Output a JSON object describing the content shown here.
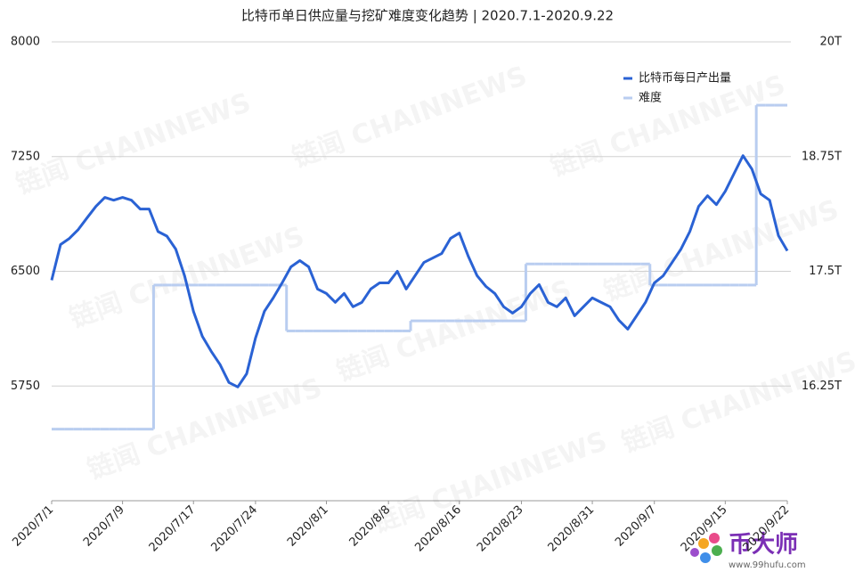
{
  "chart_data": {
    "type": "line",
    "title": "比特币单日供应量与挖矿难度变化趋势 | 2020.7.1-2020.9.22",
    "categories": [
      "2020/7/1",
      null,
      null,
      null,
      null,
      null,
      null,
      null,
      "2020/7/9",
      null,
      null,
      null,
      null,
      null,
      null,
      null,
      "2020/7/17",
      null,
      null,
      null,
      null,
      null,
      null,
      "2020/7/24",
      null,
      null,
      null,
      null,
      null,
      null,
      null,
      "2020/8/1",
      null,
      null,
      null,
      null,
      null,
      null,
      "2020/8/8",
      null,
      null,
      null,
      null,
      null,
      null,
      null,
      "2020/8/16",
      null,
      null,
      null,
      null,
      null,
      null,
      "2020/8/23",
      null,
      null,
      null,
      null,
      null,
      null,
      null,
      "2020/8/31",
      null,
      null,
      null,
      null,
      null,
      null,
      "2020/9/7",
      null,
      null,
      null,
      null,
      null,
      null,
      null,
      "2020/9/15",
      null,
      null,
      null,
      null,
      null,
      null,
      "2020/9/22"
    ],
    "series": [
      {
        "name": "比特币每日产出量",
        "color": "#2a62d4",
        "axis": "y",
        "values": [
          6442,
          6675,
          6715,
          6773,
          6850,
          6925,
          6983,
          6965,
          6983,
          6965,
          6907,
          6907,
          6760,
          6730,
          6645,
          6470,
          6238,
          6075,
          5977,
          5890,
          5773,
          5744,
          5830,
          6064,
          6238,
          6326,
          6424,
          6529,
          6570,
          6529,
          6384,
          6355,
          6297,
          6355,
          6268,
          6297,
          6384,
          6424,
          6424,
          6500,
          6384,
          6471,
          6558,
          6587,
          6616,
          6715,
          6750,
          6599,
          6471,
          6401,
          6355,
          6268,
          6227,
          6268,
          6355,
          6413,
          6297,
          6268,
          6326,
          6209,
          6268,
          6326,
          6297,
          6268,
          6180,
          6122,
          6209,
          6297,
          6424,
          6471,
          6558,
          6645,
          6760,
          6925,
          6994,
          6936,
          7023,
          7140,
          7256,
          7169,
          7006,
          6965,
          6733,
          6634
        ]
      },
      {
        "name": "难度",
        "color": "#b9cdf0",
        "axis": "y2",
        "step": true,
        "values": [
          15.78,
          15.78,
          15.78,
          15.78,
          15.78,
          15.78,
          15.78,
          15.78,
          15.78,
          15.78,
          15.78,
          15.78,
          17.35,
          17.35,
          17.35,
          17.35,
          17.35,
          17.35,
          17.35,
          17.35,
          17.35,
          17.35,
          17.35,
          17.35,
          17.35,
          17.35,
          17.35,
          16.85,
          16.85,
          16.85,
          16.85,
          16.85,
          16.85,
          16.85,
          16.85,
          16.85,
          16.85,
          16.85,
          16.85,
          16.85,
          16.85,
          16.96,
          16.96,
          16.96,
          16.96,
          16.96,
          16.96,
          16.96,
          16.96,
          16.96,
          16.96,
          16.96,
          16.96,
          16.96,
          17.58,
          17.58,
          17.58,
          17.58,
          17.58,
          17.58,
          17.58,
          17.58,
          17.58,
          17.58,
          17.58,
          17.58,
          17.58,
          17.58,
          17.35,
          17.35,
          17.35,
          17.35,
          17.35,
          17.35,
          17.35,
          17.35,
          17.35,
          17.35,
          17.35,
          17.35,
          19.31,
          19.31,
          19.31,
          19.31
        ]
      }
    ],
    "ylim": [
      5000,
      8000
    ],
    "yticks": [
      5750,
      6500,
      7250,
      8000
    ],
    "y2lim": [
      15,
      20
    ],
    "y2ticks": [
      {
        "value": 16.25,
        "label": "16.25T"
      },
      {
        "value": 17.5,
        "label": "17.5T"
      },
      {
        "value": 18.75,
        "label": "18.75T"
      },
      {
        "value": 20,
        "label": "20T"
      }
    ],
    "grid": true,
    "legend": "top-right",
    "watermark": "链闻 CHAINNEWS",
    "logo": {
      "name": "币大师",
      "url": "www.99hufu.com"
    }
  }
}
